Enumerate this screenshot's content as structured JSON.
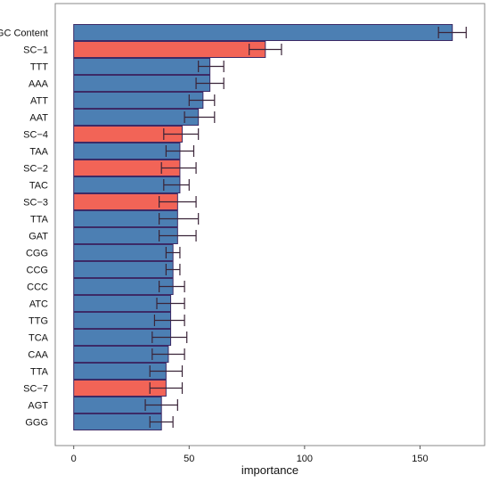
{
  "chart_data": {
    "type": "bar",
    "orientation": "horizontal",
    "title": "",
    "xlabel": "importance",
    "ylabel": "",
    "xlim": [
      -8,
      178
    ],
    "xticks": [
      0,
      50,
      100,
      150
    ],
    "grid": false,
    "legend": "none",
    "categories": [
      "GC Content",
      "SC−1",
      "TTT",
      "AAA",
      "ATT",
      "AAT",
      "SC−4",
      "TAA",
      "SC−2",
      "TAC",
      "SC−3",
      "TTA",
      "GAT",
      "CGG",
      "CCG",
      "CCC",
      "ATC",
      "TTG",
      "TCA",
      "CAA",
      "TTA",
      "SC−7",
      "AGT",
      "GGG"
    ],
    "values": [
      164,
      83,
      59,
      59,
      56,
      54,
      47,
      46,
      46,
      46,
      45,
      45,
      45,
      43,
      43,
      43,
      42,
      42,
      42,
      41,
      40,
      40,
      38,
      38
    ],
    "error_low": [
      158,
      76,
      54,
      53,
      50,
      48,
      39,
      40,
      38,
      39,
      37,
      37,
      37,
      40,
      40,
      37,
      36,
      35,
      34,
      34,
      33,
      33,
      31,
      33
    ],
    "error_high": [
      170,
      90,
      65,
      65,
      61,
      61,
      54,
      52,
      53,
      50,
      53,
      54,
      53,
      46,
      46,
      48,
      48,
      48,
      49,
      48,
      47,
      47,
      45,
      43
    ],
    "bar_colors": [
      "#4c7fb3",
      "#f26457",
      "#4c7fb3",
      "#4c7fb3",
      "#4c7fb3",
      "#4c7fb3",
      "#f26457",
      "#4c7fb3",
      "#f26457",
      "#4c7fb3",
      "#f26457",
      "#4c7fb3",
      "#4c7fb3",
      "#4c7fb3",
      "#4c7fb3",
      "#4c7fb3",
      "#4c7fb3",
      "#4c7fb3",
      "#4c7fb3",
      "#4c7fb3",
      "#4c7fb3",
      "#f26457",
      "#4c7fb3",
      "#4c7fb3"
    ],
    "bar_outline_color": "#3c2a66",
    "errorbar_color": "#3a2438",
    "panel_border_color": "#8a8a8a"
  }
}
